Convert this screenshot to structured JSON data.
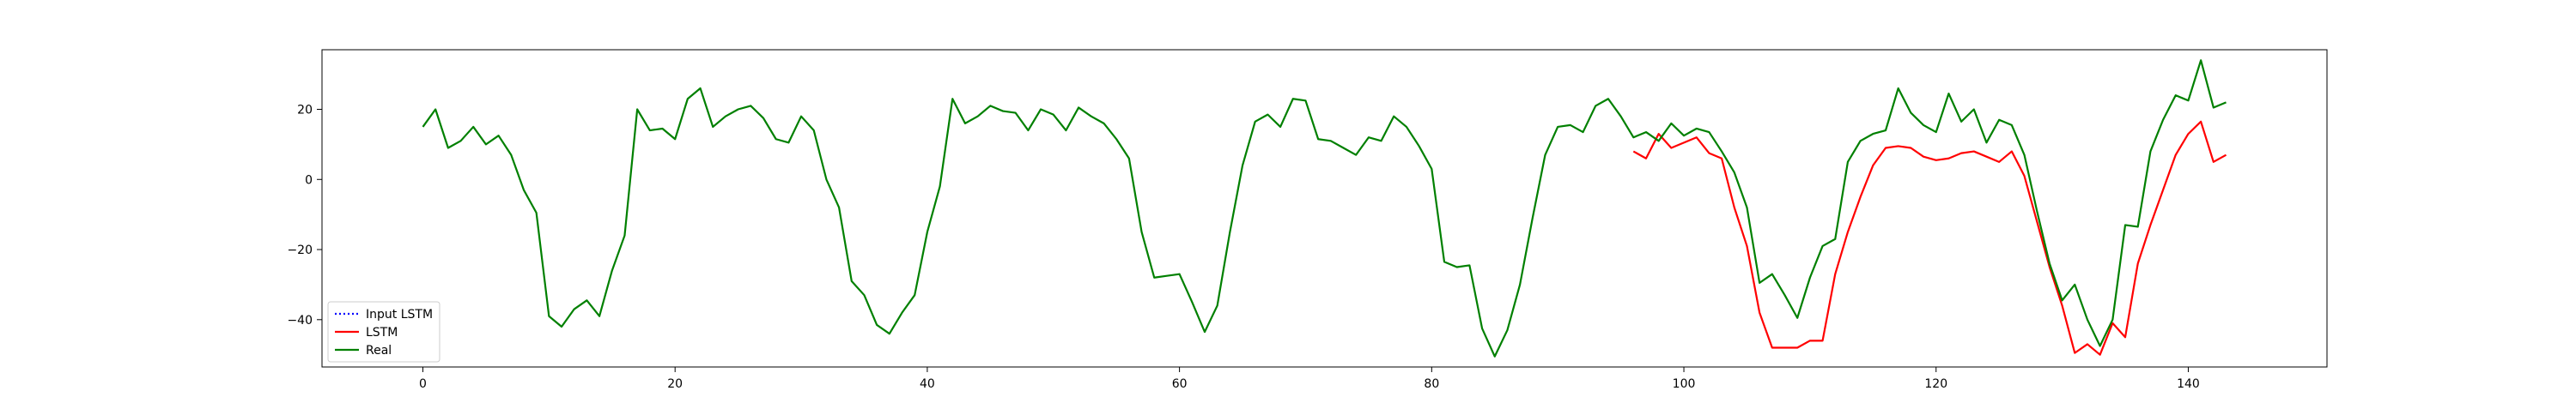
{
  "chart_data": {
    "type": "line",
    "title": "",
    "xlabel": "",
    "ylabel": "",
    "xlim": [
      -8,
      151
    ],
    "ylim": [
      -53.5,
      37
    ],
    "xticks": [
      0,
      20,
      40,
      60,
      80,
      100,
      120,
      140
    ],
    "yticks": [
      -40,
      -20,
      0,
      20
    ],
    "xtick_labels": [
      "0",
      "20",
      "40",
      "60",
      "80",
      "100",
      "120",
      "140"
    ],
    "ytick_labels": [
      "−40",
      "−20",
      "0",
      "20"
    ],
    "grid": false,
    "legend_position": "lower-left",
    "series": [
      {
        "name": "Input LSTM",
        "color": "#0000ff",
        "style": "dotted",
        "x": [],
        "y": []
      },
      {
        "name": "LSTM",
        "color": "#ff0000",
        "style": "solid",
        "x": [
          96,
          97,
          98,
          99,
          100,
          101,
          102,
          103,
          104,
          105,
          106,
          107,
          108,
          109,
          110,
          111,
          112,
          113,
          114,
          115,
          116,
          117,
          118,
          119,
          120,
          121,
          122,
          123,
          124,
          125,
          126,
          127,
          128,
          129,
          130,
          131,
          132,
          133,
          134,
          135,
          136,
          137,
          138,
          139,
          140,
          141,
          142,
          143
        ],
        "y": [
          8,
          6,
          13,
          9,
          10.5,
          12,
          7.5,
          6,
          -8,
          -19,
          -38,
          -48,
          -48,
          -48,
          -46,
          -46,
          -27,
          -15,
          -5,
          4,
          9,
          9.5,
          9,
          6.5,
          5.5,
          6,
          7.5,
          8,
          6.5,
          5,
          8,
          1,
          -12,
          -25,
          -36,
          -49.5,
          -47,
          -50,
          -41,
          -45,
          -24,
          -13,
          -3,
          7,
          13,
          16.5,
          5,
          7
        ]
      },
      {
        "name": "Real",
        "color": "#008000",
        "style": "solid",
        "x": [
          0,
          1,
          2,
          3,
          4,
          5,
          6,
          7,
          8,
          9,
          10,
          11,
          12,
          13,
          14,
          15,
          16,
          17,
          18,
          19,
          20,
          21,
          22,
          23,
          24,
          25,
          26,
          27,
          28,
          29,
          30,
          31,
          32,
          33,
          34,
          35,
          36,
          37,
          38,
          39,
          40,
          41,
          42,
          43,
          44,
          45,
          46,
          47,
          48,
          49,
          50,
          51,
          52,
          53,
          54,
          55,
          56,
          57,
          58,
          59,
          60,
          61,
          62,
          63,
          64,
          65,
          66,
          67,
          68,
          69,
          70,
          71,
          72,
          73,
          74,
          75,
          76,
          77,
          78,
          79,
          80,
          81,
          82,
          83,
          84,
          85,
          86,
          87,
          88,
          89,
          90,
          91,
          92,
          93,
          94,
          95,
          96,
          97,
          98,
          99,
          100,
          101,
          102,
          103,
          104,
          105,
          106,
          107,
          108,
          109,
          110,
          111,
          112,
          113,
          114,
          115,
          116,
          117,
          118,
          119,
          120,
          121,
          122,
          123,
          124,
          125,
          126,
          127,
          128,
          129,
          130,
          131,
          132,
          133,
          134,
          135,
          136,
          137,
          138,
          139,
          140,
          141,
          142,
          143
        ],
        "y": [
          15,
          20,
          9,
          11,
          15,
          10,
          12.5,
          7,
          -3,
          -9.5,
          -39,
          -42,
          -37,
          -34.5,
          -39,
          -26,
          -16,
          20,
          14,
          14.5,
          11.5,
          23,
          26,
          15,
          18,
          20,
          21,
          17.5,
          11.5,
          10.5,
          18,
          14,
          0,
          -8,
          -29,
          -33,
          -41.5,
          -44,
          -38,
          -33,
          -15,
          -2,
          23,
          16,
          18,
          21,
          19.5,
          19,
          14,
          20,
          18.5,
          14,
          20.5,
          18,
          16,
          11.5,
          6,
          -15,
          -28,
          -27.5,
          -27,
          -35,
          -43.5,
          -36,
          -15,
          4,
          16.5,
          18.5,
          15,
          23,
          22.5,
          11.5,
          11,
          9,
          7,
          12,
          11,
          18,
          15,
          9.5,
          3,
          -23.5,
          -25,
          -24.5,
          -42.5,
          -50.5,
          -43,
          -30,
          -11,
          7,
          15,
          15.5,
          13.5,
          21,
          23,
          18,
          12,
          13.5,
          11,
          16,
          12.5,
          14.5,
          13.5,
          8,
          2,
          -8,
          -29.5,
          -27,
          -33,
          -39.5,
          -28,
          -19,
          -17,
          5,
          11,
          13,
          14,
          26,
          19,
          15.5,
          13.5,
          24.5,
          16.5,
          20,
          10.5,
          17,
          15.5,
          7,
          -9,
          -24,
          -34.5,
          -30,
          -40,
          -47.5,
          -40,
          -13,
          -13.5,
          8,
          17,
          24,
          22.5,
          34,
          20.5,
          22
        ]
      }
    ]
  }
}
